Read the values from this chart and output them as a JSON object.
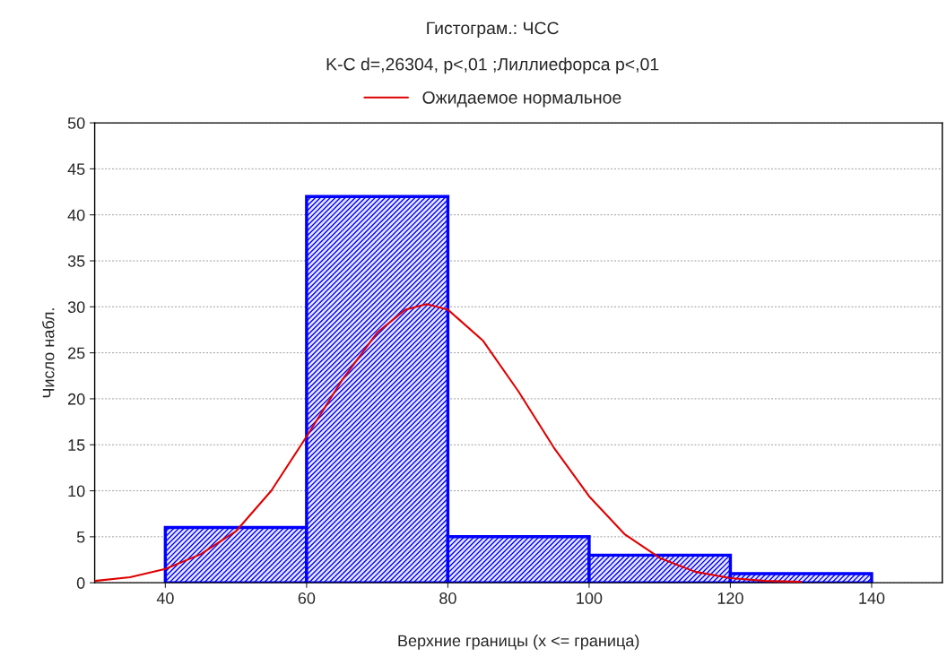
{
  "chart_data": {
    "type": "histogram",
    "title": "Гистограм.: ЧСС",
    "subtitle": "K-C d=,26304, p<,01 ;Лиллиефорса p<,01",
    "xlabel": "Верхние границы (x <= граница)",
    "ylabel": "Число набл.",
    "bins": [
      40,
      60,
      80,
      100,
      120,
      140
    ],
    "values": [
      6,
      42,
      5,
      3,
      1
    ],
    "color": "#0000ff",
    "series": [
      {
        "name": "Ожидаемое нормальное",
        "type": "line",
        "color": "#e00000",
        "x": [
          30,
          35,
          40,
          45,
          50,
          55,
          60,
          65,
          70,
          74,
          77,
          80,
          85,
          90,
          95,
          100,
          105,
          110,
          115,
          120,
          125,
          130
        ],
        "values": [
          0.2,
          0.6,
          1.5,
          3.1,
          5.6,
          10,
          15.9,
          22,
          27.2,
          29.7,
          30.3,
          29.7,
          26.3,
          20.8,
          14.7,
          9.4,
          5.3,
          2.7,
          1.2,
          0.5,
          0.2,
          0.1
        ]
      }
    ],
    "xlim": [
      30,
      150
    ],
    "xticks": [
      40,
      60,
      80,
      100,
      120,
      140
    ],
    "ylim": [
      0,
      50
    ],
    "yticks": [
      0,
      5,
      10,
      15,
      20,
      25,
      30,
      35,
      40,
      45,
      50
    ],
    "grid": "y",
    "legend": "top"
  }
}
